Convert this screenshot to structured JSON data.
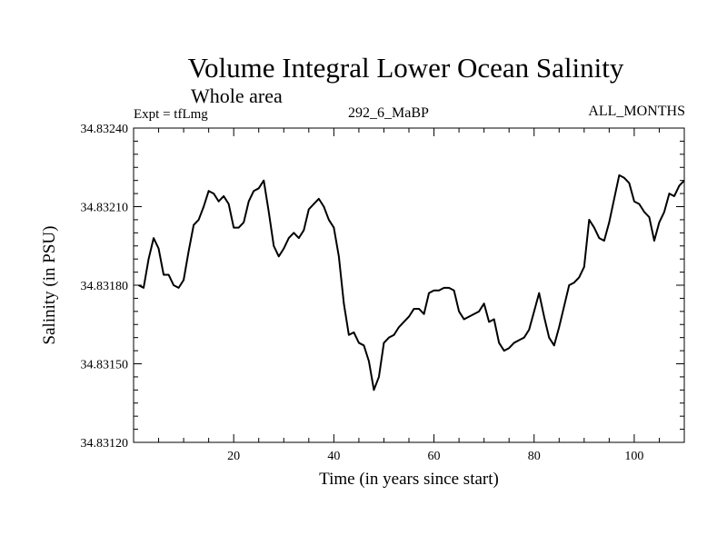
{
  "header": {
    "title": "Volume Integral Lower Ocean Salinity",
    "subtitle": "Whole area",
    "expt_label": "Expt = tfLmg",
    "run_label": "292_6_MaBP",
    "months_label": "ALL_MONTHS"
  },
  "chart_data": {
    "type": "line",
    "title": "Volume Integral Lower Ocean Salinity",
    "subtitle": "Whole area",
    "xlabel": "Time (in years since start)",
    "ylabel": "Salinity (in PSU)",
    "xlim": [
      0,
      110
    ],
    "ylim": [
      34.8312,
      34.8324
    ],
    "grid": false,
    "x_ticks": [
      20,
      40,
      60,
      80,
      100
    ],
    "x_tick_labels": [
      "20",
      "40",
      "60",
      "80",
      "100"
    ],
    "y_ticks": [
      34.8312,
      34.8315,
      34.8318,
      34.8321,
      34.8324
    ],
    "y_tick_labels": [
      "34.83120",
      "34.83150",
      "34.83180",
      "34.83210",
      "34.83240"
    ],
    "series": [
      {
        "name": "Salinity",
        "color": "#000000",
        "x": [
          1,
          2,
          3,
          4,
          5,
          6,
          7,
          8,
          9,
          10,
          11,
          12,
          13,
          14,
          15,
          16,
          17,
          18,
          19,
          20,
          21,
          22,
          23,
          24,
          25,
          26,
          27,
          28,
          29,
          30,
          31,
          32,
          33,
          34,
          35,
          36,
          37,
          38,
          39,
          40,
          41,
          42,
          43,
          44,
          45,
          46,
          47,
          48,
          49,
          50,
          51,
          52,
          53,
          54,
          55,
          56,
          57,
          58,
          59,
          60,
          61,
          62,
          63,
          64,
          65,
          66,
          67,
          68,
          69,
          70,
          71,
          72,
          73,
          74,
          75,
          76,
          77,
          78,
          79,
          80,
          81,
          82,
          83,
          84,
          85,
          86,
          87,
          88,
          89,
          90,
          91,
          92,
          93,
          94,
          95,
          96,
          97,
          98,
          99,
          100,
          101,
          102,
          103,
          104,
          105,
          106,
          107,
          108,
          109,
          110
        ],
        "values": [
          34.8318,
          34.83179,
          34.8319,
          34.83198,
          34.83194,
          34.83184,
          34.83184,
          34.8318,
          34.83179,
          34.83182,
          34.83193,
          34.83203,
          34.83205,
          34.8321,
          34.83216,
          34.83215,
          34.83212,
          34.83214,
          34.83211,
          34.83202,
          34.83202,
          34.83204,
          34.83212,
          34.83216,
          34.83217,
          34.8322,
          34.83208,
          34.83195,
          34.83191,
          34.83194,
          34.83198,
          34.832,
          34.83198,
          34.83201,
          34.83209,
          34.83211,
          34.83213,
          34.8321,
          34.83205,
          34.83202,
          34.83191,
          34.83173,
          34.83161,
          34.83162,
          34.83158,
          34.83157,
          34.83151,
          34.8314,
          34.83145,
          34.83158,
          34.8316,
          34.83161,
          34.83164,
          34.83166,
          34.83168,
          34.83171,
          34.83171,
          34.83169,
          34.83177,
          34.83178,
          34.83178,
          34.83179,
          34.83179,
          34.83178,
          34.8317,
          34.83167,
          34.83168,
          34.83169,
          34.8317,
          34.83173,
          34.83166,
          34.83167,
          34.83158,
          34.83155,
          34.83156,
          34.83158,
          34.83159,
          34.8316,
          34.83163,
          34.8317,
          34.83177,
          34.83168,
          34.8316,
          34.83157,
          34.83164,
          34.83172,
          34.8318,
          34.83181,
          34.83183,
          34.83187,
          34.83205,
          34.83202,
          34.83198,
          34.83197,
          34.83204,
          34.83213,
          34.83222,
          34.83221,
          34.83219,
          34.83212,
          34.83211,
          34.83208,
          34.83206,
          34.83197,
          34.83204,
          34.83208,
          34.83215,
          34.83214,
          34.83218,
          34.8322
        ]
      }
    ]
  }
}
